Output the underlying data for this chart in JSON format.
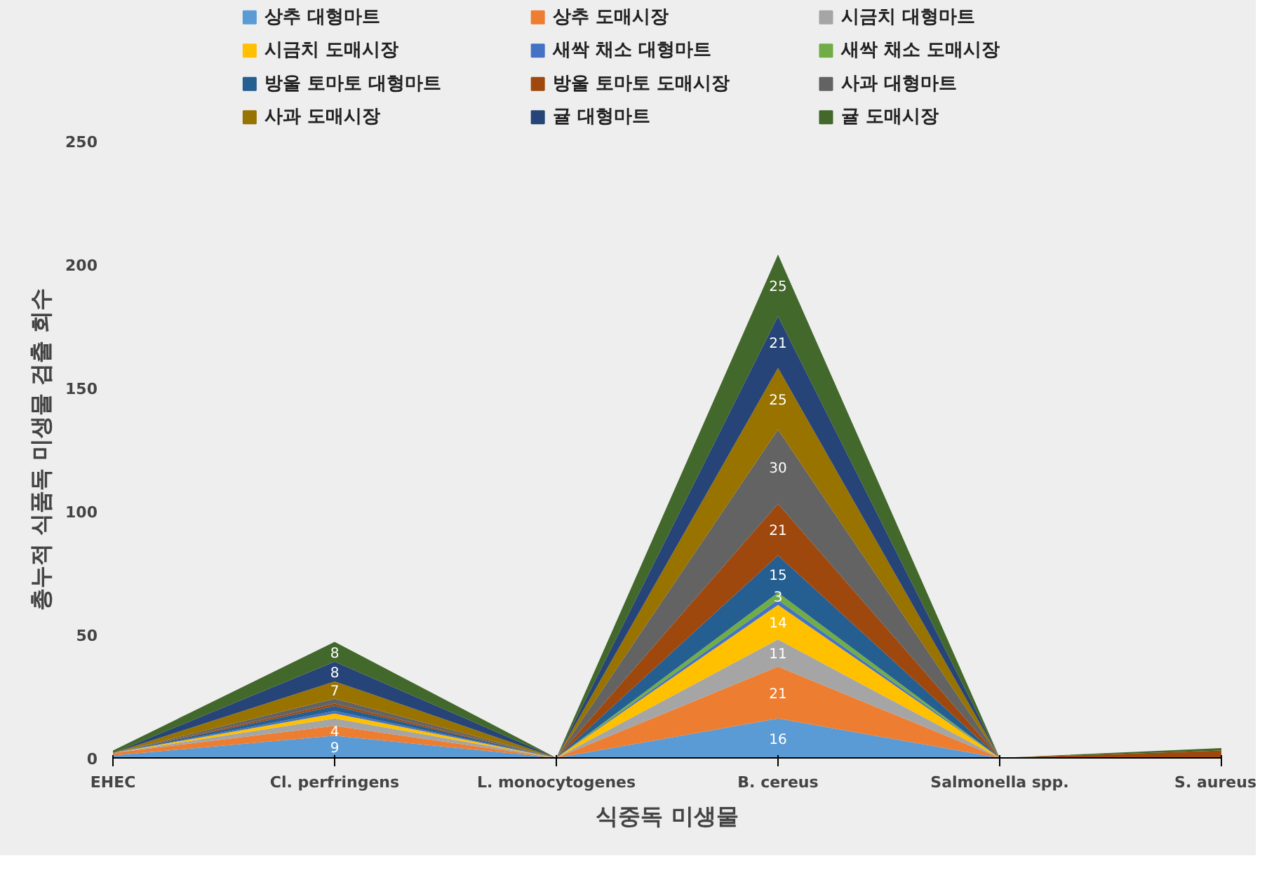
{
  "chart_data": {
    "type": "area",
    "stacked": true,
    "xlabel": "식중독 미생물",
    "ylabel": "총누적 식품독 미생물 검출 회수",
    "categories": [
      "EHEC",
      "Cl. perfringens",
      "L. monocytogenes",
      "B. cereus",
      "Salmonella spp.",
      "S. aureus"
    ],
    "ylim": [
      0,
      250
    ],
    "yticks": [
      0,
      50,
      100,
      150,
      200,
      250
    ],
    "grid": false,
    "legend": "top",
    "series": [
      {
        "name": "상추 대형마트",
        "color": "#5b9bd5",
        "values": [
          1,
          9,
          0,
          16,
          0,
          0
        ],
        "value_labels": [
          null,
          "9",
          null,
          "16",
          null,
          null
        ]
      },
      {
        "name": "상추 도매시장",
        "color": "#ed7d31",
        "values": [
          1,
          4,
          0,
          21,
          0,
          0
        ],
        "value_labels": [
          null,
          "4",
          null,
          "21",
          null,
          null
        ]
      },
      {
        "name": "시금치 대형마트",
        "color": "#a5a5a5",
        "values": [
          0,
          3,
          0,
          11,
          0,
          0
        ],
        "value_labels": [
          null,
          null,
          null,
          "11",
          null,
          null
        ]
      },
      {
        "name": "시금치 도매시장",
        "color": "#ffc000",
        "values": [
          0,
          2,
          0,
          14,
          0,
          0
        ],
        "value_labels": [
          null,
          null,
          null,
          "14",
          null,
          null
        ]
      },
      {
        "name": "새싹 채소 대형마트",
        "color": "#4472c4",
        "values": [
          0,
          1,
          0,
          2,
          0,
          0
        ],
        "value_labels": [
          null,
          null,
          null,
          null,
          null,
          null
        ]
      },
      {
        "name": "새싹 채소 도매시장",
        "color": "#70ad47",
        "values": [
          0,
          0,
          0,
          3,
          0,
          0
        ],
        "value_labels": [
          null,
          null,
          null,
          "3",
          null,
          null
        ]
      },
      {
        "name": "방울 토마토 대형마트",
        "color": "#255e91",
        "values": [
          0,
          2,
          0,
          15,
          0,
          0
        ],
        "value_labels": [
          null,
          null,
          null,
          "15",
          null,
          null
        ]
      },
      {
        "name": "방울 토마토 도매시장",
        "color": "#9e480e",
        "values": [
          0,
          1,
          0,
          21,
          0,
          3
        ],
        "value_labels": [
          null,
          null,
          null,
          "21",
          null,
          null
        ]
      },
      {
        "name": "사과 대형마트",
        "color": "#636363",
        "values": [
          0,
          2,
          0,
          30,
          0,
          0
        ],
        "value_labels": [
          null,
          null,
          null,
          "30",
          null,
          null
        ]
      },
      {
        "name": "사과 도매시장",
        "color": "#997300",
        "values": [
          0,
          7,
          0,
          25,
          0,
          0
        ],
        "value_labels": [
          null,
          "7",
          null,
          "25",
          null,
          null
        ]
      },
      {
        "name": "귤 대형마트",
        "color": "#264478",
        "values": [
          0,
          8,
          0,
          21,
          0,
          0
        ],
        "value_labels": [
          null,
          "8",
          null,
          "21",
          null,
          null
        ]
      },
      {
        "name": "귤 도매시장",
        "color": "#43682b",
        "values": [
          1,
          8,
          0,
          25,
          0,
          1
        ],
        "value_labels": [
          null,
          "8",
          null,
          "25",
          null,
          null
        ]
      }
    ]
  }
}
